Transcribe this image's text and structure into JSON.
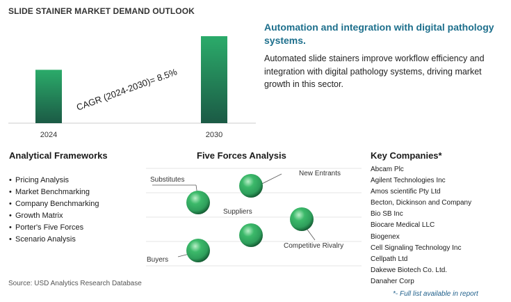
{
  "title": "SLIDE STAINER MARKET DEMAND OUTLOOK",
  "chart_data": {
    "type": "bar",
    "categories": [
      "2024",
      "2030"
    ],
    "values": [
      1.0,
      1.63
    ],
    "annotation": "CAGR (2024-2030)=  8.5%",
    "title": "",
    "xlabel": "",
    "ylabel": "",
    "ylim": [
      0,
      1.63
    ],
    "grid": false,
    "legend": "none",
    "colors": {
      "bar_top": "#2bab6a",
      "bar_bottom": "#1b5a45"
    }
  },
  "headline": "Automation and integration with digital pathology systems.",
  "description": "Automated slide stainers improve workflow efficiency and integration with digital pathology systems, driving market growth in this sector.",
  "frameworks": {
    "title": "Analytical Frameworks",
    "items": [
      "Pricing Analysis",
      "Market Benchmarking",
      "Company Benchmarking",
      "Growth Matrix",
      "Porter's Five Forces",
      "Scenario Analysis"
    ]
  },
  "five_forces": {
    "title": "Five Forces Analysis",
    "labels": {
      "substitutes": "Substitutes",
      "new_entrants": "New Entrants",
      "suppliers": "Suppliers",
      "competitive_rivalry": "Competitive Rivalry",
      "buyers": "Buyers"
    },
    "sphere_color": "#2e9e5b"
  },
  "companies": {
    "title": "Key Companies*",
    "items": [
      "Abcam Plc",
      "Agilent Technologies Inc",
      "Amos scientific Pty Ltd",
      "Becton, Dickinson and Company",
      "Bio SB Inc",
      "Biocare Medical LLC",
      "Biogenex",
      "Cell Signaling Technology Inc",
      "Cellpath Ltd",
      "Dakewe Biotech Co. Ltd.",
      "Danaher Corp"
    ],
    "note": "*- Full list available in report"
  },
  "source": "Source: USD Analytics Research Database"
}
